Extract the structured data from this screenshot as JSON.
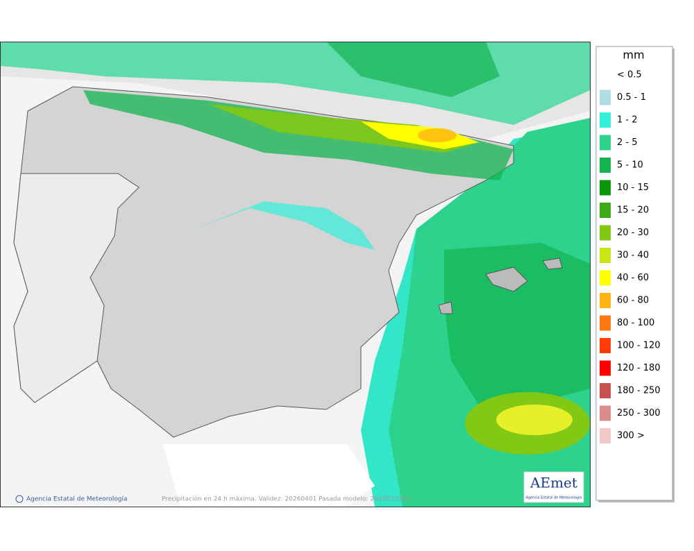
{
  "legend": {
    "title": "mm",
    "items": [
      {
        "label": "< 0.5",
        "color": "#ffffff"
      },
      {
        "label": "0.5 - 1",
        "color": "#b0dde4"
      },
      {
        "label": "1 - 2",
        "color": "#33f0dc"
      },
      {
        "label": "2 - 5",
        "color": "#2dd28c"
      },
      {
        "label": "5 - 10",
        "color": "#14b450"
      },
      {
        "label": "10 - 15",
        "color": "#0a960a"
      },
      {
        "label": "15 - 20",
        "color": "#3caa14"
      },
      {
        "label": "20 - 30",
        "color": "#82c814"
      },
      {
        "label": "30 - 40",
        "color": "#c8e614"
      },
      {
        "label": "40 - 60",
        "color": "#ffff00"
      },
      {
        "label": "60 - 80",
        "color": "#ffb414"
      },
      {
        "label": "80 - 100",
        "color": "#ff7814"
      },
      {
        "label": "100 - 120",
        "color": "#ff3c0a"
      },
      {
        "label": "120 - 180",
        "color": "#ff0000"
      },
      {
        "label": "180 - 250",
        "color": "#c85050"
      },
      {
        "label": "250 - 300",
        "color": "#dc8c8c"
      },
      {
        "label": "300 >",
        "color": "#f0c8c8"
      }
    ]
  },
  "footer": {
    "credit": "Agencia Estatal de Meteorología",
    "caption": "Precipitación en 24 h máxima. Validez: 20260401 Pasada modelo: 2026033100"
  },
  "logo": {
    "name": "AEmet",
    "subtitle": "Agencia Estatal de Meteorología"
  }
}
